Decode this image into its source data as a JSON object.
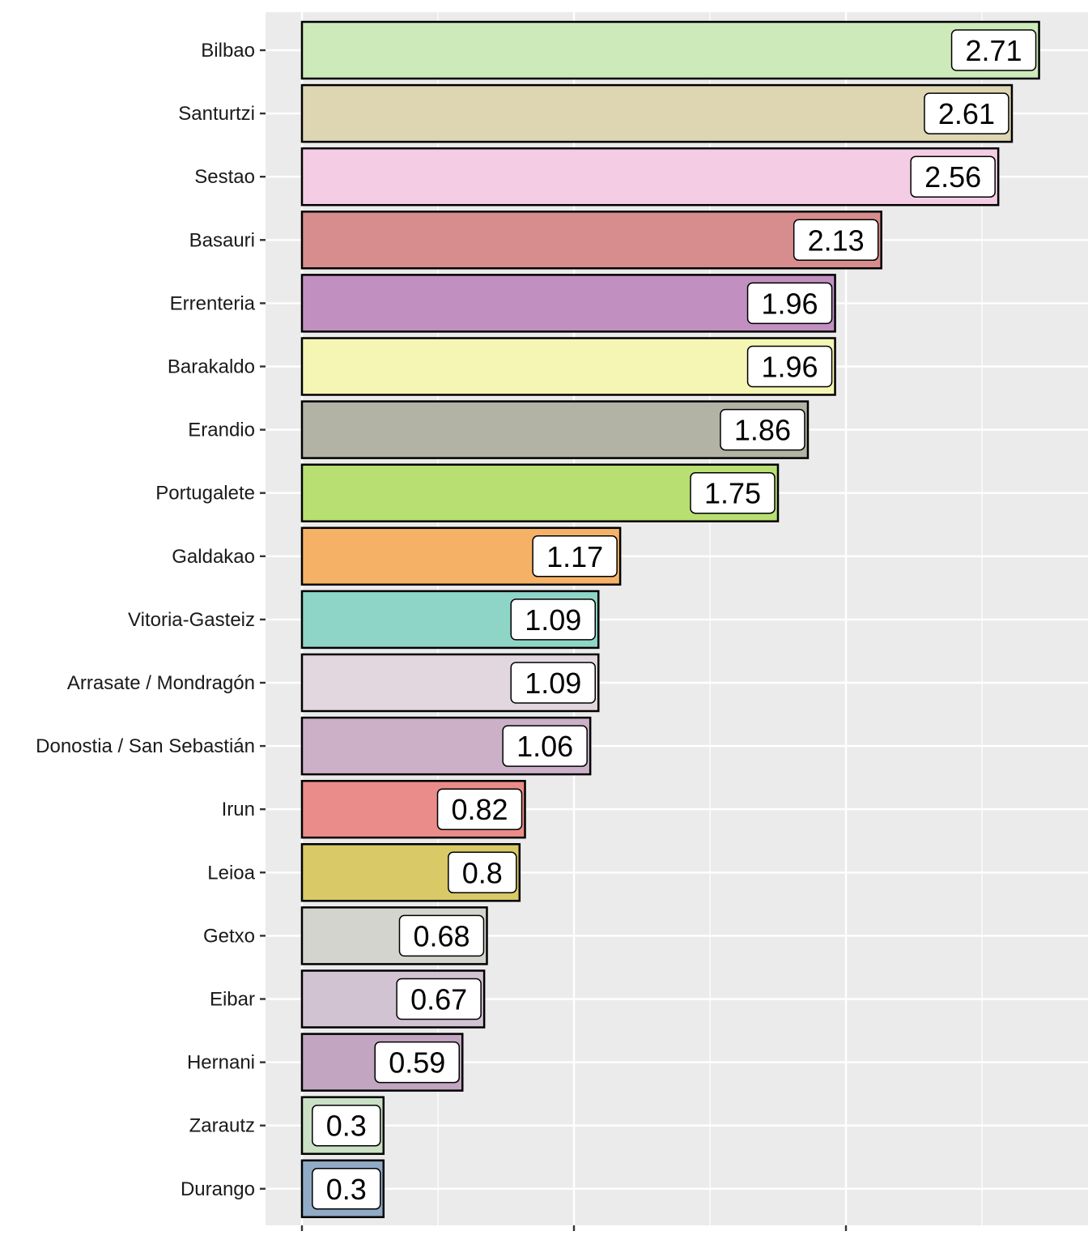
{
  "chart_data": {
    "type": "bar",
    "orientation": "horizontal",
    "title": "",
    "xlabel": "",
    "ylabel": "",
    "xlim": [
      -0.13,
      2.9
    ],
    "x_ticks": [
      0,
      1,
      2
    ],
    "grid": true,
    "categories": [
      "Bilbao",
      "Santurtzi",
      "Sestao",
      "Basauri",
      "Errenteria",
      "Barakaldo",
      "Erandio",
      "Portugalete",
      "Galdakao",
      "Vitoria-Gasteiz",
      "Arrasate / Mondragón",
      "Donostia / San Sebastián",
      "Irun",
      "Leioa",
      "Getxo",
      "Eibar",
      "Hernani",
      "Zarautz",
      "Durango"
    ],
    "values": [
      2.71,
      2.61,
      2.56,
      2.13,
      1.96,
      1.96,
      1.86,
      1.75,
      1.17,
      1.09,
      1.09,
      1.06,
      0.82,
      0.8,
      0.68,
      0.67,
      0.59,
      0.3,
      0.3
    ],
    "labels": [
      "2.71",
      "2.61",
      "2.56",
      "2.13",
      "1.96",
      "1.96",
      "1.86",
      "1.75",
      "1.17",
      "1.09",
      "1.09",
      "1.06",
      "0.82",
      "0.8",
      "0.68",
      "0.67",
      "0.59",
      "0.3",
      "0.3"
    ],
    "colors": [
      "#CDEBBA",
      "#DED5B2",
      "#F4CDE4",
      "#D78D8D",
      "#C190C1",
      "#F6F6B4",
      "#B2B2A5",
      "#B8DF72",
      "#F5B267",
      "#8ED5C8",
      "#E2D7DE",
      "#CBB0C8",
      "#EA8C89",
      "#D9C967",
      "#D4D4CF",
      "#D2C3D2",
      "#C1A5C1",
      "#C9E0C4",
      "#91ABC6"
    ]
  }
}
